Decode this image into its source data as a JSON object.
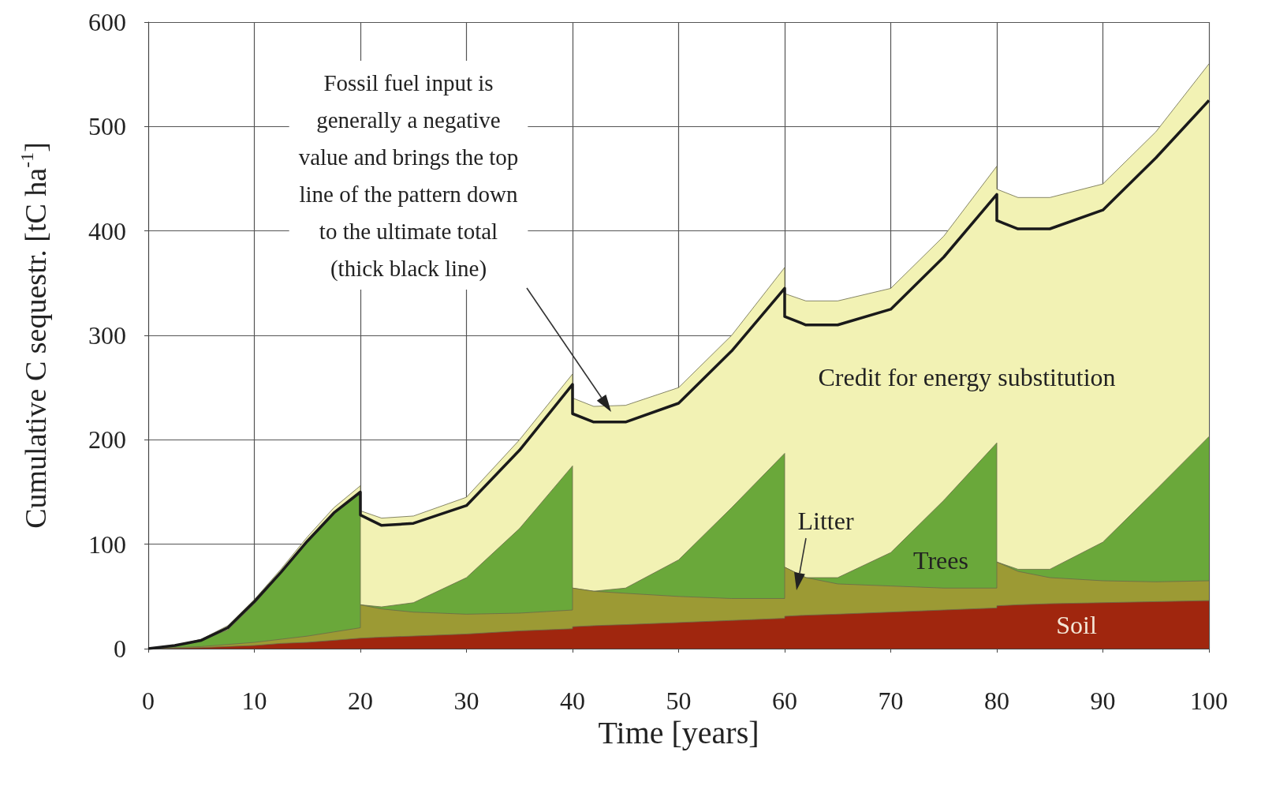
{
  "chart_data": {
    "type": "area",
    "xlabel": "Time [years]",
    "ylabel": "Cumulative C sequestr. [tC ha$^{-1}$]",
    "x": [
      0,
      2.5,
      5,
      7.5,
      10,
      12.5,
      15,
      17.5,
      20,
      20,
      22,
      25,
      30,
      35,
      40,
      40,
      42,
      45,
      50,
      55,
      60,
      60,
      62,
      65,
      70,
      75,
      80,
      80,
      82,
      85,
      90,
      95,
      100
    ],
    "stacked": true,
    "series": [
      {
        "name": "Soil",
        "color": "#a0260e",
        "values": [
          0,
          0.5,
          1,
          2,
          3,
          5,
          6,
          8,
          10,
          10,
          11,
          12,
          14,
          17,
          19,
          21,
          22,
          23,
          25,
          27,
          29,
          31,
          32,
          33,
          35,
          37,
          39,
          41,
          42,
          43,
          44,
          45,
          46
        ]
      },
      {
        "name": "Litter",
        "color": "#9c9a34",
        "values": [
          0,
          0.5,
          1,
          2,
          3,
          4,
          6,
          8,
          10,
          32,
          27,
          23,
          19,
          17,
          18,
          37,
          33,
          30,
          25,
          21,
          19,
          47,
          36,
          29,
          25,
          21,
          19,
          42,
          32,
          25,
          21,
          19,
          19
        ]
      },
      {
        "name": "Trees",
        "color": "#6aa83a",
        "values": [
          0,
          2,
          6,
          14,
          37,
          63,
          90,
          114,
          130,
          0,
          2,
          9,
          35,
          81,
          138,
          0,
          0,
          5,
          35,
          87,
          139,
          0,
          0,
          6,
          32,
          84,
          139,
          0,
          2,
          8,
          37,
          88,
          138
        ]
      },
      {
        "name": "Credit for energy substitution",
        "color": "#f2f2b4",
        "values": [
          0,
          0,
          1,
          4,
          4,
          4,
          5,
          5,
          6,
          90,
          85,
          83,
          77,
          85,
          88,
          182,
          177,
          175,
          165,
          165,
          178,
          262,
          265,
          265,
          253,
          253,
          265,
          357,
          356,
          356,
          343,
          343,
          357
        ]
      },
      {
        "type": "line",
        "color": "#1a1a1a",
        "values": [
          0,
          3,
          8,
          20,
          45,
          73,
          103,
          130,
          150,
          128,
          118,
          120,
          137,
          190,
          253,
          225,
          217,
          217,
          235,
          285,
          345,
          318,
          310,
          310,
          325,
          375,
          435,
          410,
          402,
          402,
          420,
          470,
          525
        ]
      }
    ],
    "xlim": [
      0,
      100
    ],
    "xticks": [
      0,
      10,
      20,
      30,
      40,
      50,
      60,
      70,
      80,
      90,
      100
    ],
    "ylim": [
      0,
      600
    ],
    "yticks": [
      0,
      100,
      200,
      300,
      400,
      500,
      600
    ],
    "grid": true,
    "annotations": [
      "Fossil fuel input is\ngenerally a negative\nvalue and brings the top\nline of the pattern down\nto the ultimate total\n(thick black line)"
    ]
  }
}
